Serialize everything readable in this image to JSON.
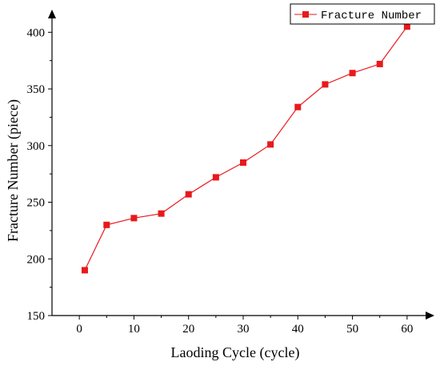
{
  "chart_data": {
    "type": "line",
    "title": "",
    "xlabel": "Laoding Cycle (cycle)",
    "ylabel": "Fracture Number (piece)",
    "xlim": [
      -5,
      65
    ],
    "ylim": [
      150,
      420
    ],
    "x_ticks": [
      0,
      10,
      20,
      30,
      40,
      50,
      60
    ],
    "y_ticks": [
      150,
      200,
      250,
      300,
      350,
      400
    ],
    "grid": false,
    "legend_position": "top-right",
    "series": [
      {
        "name": "Fracture Number",
        "color": "#e8191c",
        "x": [
          1,
          5,
          10,
          15,
          20,
          25,
          30,
          35,
          40,
          45,
          50,
          55,
          60
        ],
        "y": [
          190,
          230,
          236,
          240,
          257,
          272,
          285,
          301,
          334,
          354,
          364,
          372,
          405
        ]
      }
    ]
  }
}
